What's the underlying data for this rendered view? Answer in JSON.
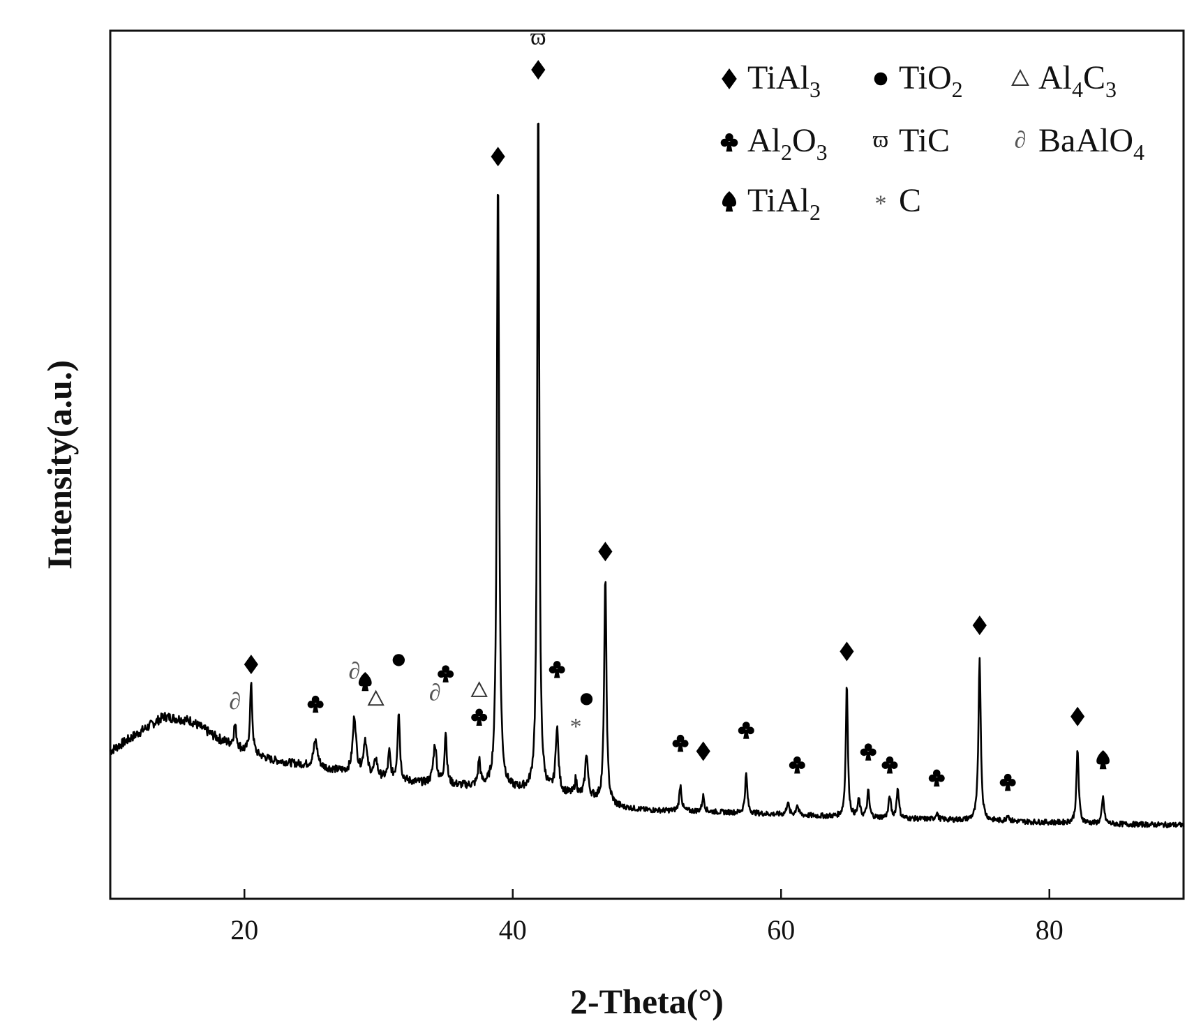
{
  "chart_data": {
    "type": "line",
    "xlabel": "2-Theta(°)",
    "ylabel": "Intensity(a.u.)",
    "xlim": [
      10,
      90
    ],
    "ylim": [
      0,
      100
    ],
    "x_ticks": [
      20,
      40,
      60,
      80
    ],
    "y_ticks_shown": false,
    "legend_position": "top-right",
    "line_color": "#000000",
    "legend": [
      {
        "symbol": "diamond",
        "name": "TiAl",
        "sub": "3"
      },
      {
        "symbol": "circle",
        "name": "TiO",
        "sub": "2"
      },
      {
        "symbol": "triangle-open",
        "name": "Al",
        "sub": "4",
        "name2": "C",
        "sub2": "3"
      },
      {
        "symbol": "club",
        "name": "Al",
        "sub": "2",
        "name2": "O",
        "sub2": "3"
      },
      {
        "symbol": "varpi",
        "name": "TiC"
      },
      {
        "symbol": "partial",
        "name": "BaAlO",
        "sub": "4"
      },
      {
        "symbol": "spade",
        "name": "TiAl",
        "sub": "2"
      },
      {
        "symbol": "asterisk",
        "name": "C"
      }
    ],
    "baseline": [
      [
        10,
        17
      ],
      [
        12,
        19
      ],
      [
        14,
        21
      ],
      [
        16,
        20.5
      ],
      [
        18,
        18.5
      ],
      [
        20,
        17
      ],
      [
        22,
        16
      ],
      [
        24,
        15.5
      ],
      [
        26,
        15
      ],
      [
        28,
        14.5
      ],
      [
        30,
        14
      ],
      [
        32,
        13.5
      ],
      [
        34,
        13.2
      ],
      [
        36,
        13
      ],
      [
        38,
        12.8
      ],
      [
        40,
        12.5
      ],
      [
        42,
        12.3
      ],
      [
        44,
        12
      ],
      [
        46,
        11.5
      ],
      [
        48,
        10.5
      ],
      [
        50,
        10.2
      ],
      [
        55,
        10
      ],
      [
        60,
        9.7
      ],
      [
        65,
        9.4
      ],
      [
        70,
        9.2
      ],
      [
        75,
        9
      ],
      [
        80,
        8.8
      ],
      [
        85,
        8.6
      ],
      [
        90,
        8.5
      ]
    ],
    "peaks": [
      {
        "x": 19.3,
        "h": 2.5,
        "w": 0.12
      },
      {
        "x": 20.5,
        "h": 8,
        "w": 0.1
      },
      {
        "x": 25.3,
        "h": 3,
        "w": 0.18
      },
      {
        "x": 28.2,
        "h": 6.5,
        "w": 0.15
      },
      {
        "x": 29.0,
        "h": 4,
        "w": 0.15
      },
      {
        "x": 29.8,
        "h": 2,
        "w": 0.12
      },
      {
        "x": 30.8,
        "h": 3,
        "w": 0.1
      },
      {
        "x": 31.5,
        "h": 8,
        "w": 0.1
      },
      {
        "x": 34.2,
        "h": 4.5,
        "w": 0.15
      },
      {
        "x": 35.0,
        "h": 6,
        "w": 0.1
      },
      {
        "x": 37.5,
        "h": 3,
        "w": 0.1
      },
      {
        "x": 38.9,
        "h": 71,
        "w": 0.1
      },
      {
        "x": 41.9,
        "h": 81,
        "w": 0.09
      },
      {
        "x": 43.3,
        "h": 7.5,
        "w": 0.12
      },
      {
        "x": 44.7,
        "h": 1.8,
        "w": 0.1
      },
      {
        "x": 45.5,
        "h": 5,
        "w": 0.12
      },
      {
        "x": 46.9,
        "h": 26,
        "w": 0.1
      },
      {
        "x": 52.5,
        "h": 3,
        "w": 0.1
      },
      {
        "x": 54.2,
        "h": 1.8,
        "w": 0.1
      },
      {
        "x": 57.4,
        "h": 4.5,
        "w": 0.1
      },
      {
        "x": 60.5,
        "h": 1.5,
        "w": 0.1
      },
      {
        "x": 61.2,
        "h": 1.2,
        "w": 0.1
      },
      {
        "x": 64.9,
        "h": 15.5,
        "w": 0.09
      },
      {
        "x": 65.8,
        "h": 2,
        "w": 0.1
      },
      {
        "x": 66.5,
        "h": 3,
        "w": 0.1
      },
      {
        "x": 68.1,
        "h": 2.5,
        "w": 0.1
      },
      {
        "x": 68.7,
        "h": 3.5,
        "w": 0.1
      },
      {
        "x": 71.6,
        "h": 0.8,
        "w": 0.1
      },
      {
        "x": 74.8,
        "h": 19,
        "w": 0.1
      },
      {
        "x": 76.9,
        "h": 0.8,
        "w": 0.1
      },
      {
        "x": 82.1,
        "h": 8.5,
        "w": 0.1
      },
      {
        "x": 84.0,
        "h": 3,
        "w": 0.1
      }
    ],
    "annotations": [
      {
        "x": 19.3,
        "symbol": "partial",
        "y": 22.5
      },
      {
        "x": 20.5,
        "symbol": "diamond",
        "y": 27
      },
      {
        "x": 25.3,
        "symbol": "club",
        "y": 22.5
      },
      {
        "x": 28.2,
        "symbol": "partial",
        "y": 26
      },
      {
        "x": 29.0,
        "symbol": "spade",
        "y": 25
      },
      {
        "x": 29.8,
        "symbol": "triangle-open",
        "y": 23
      },
      {
        "x": 31.5,
        "symbol": "circle",
        "y": 27.5
      },
      {
        "x": 34.2,
        "symbol": "partial",
        "y": 23.5
      },
      {
        "x": 35.0,
        "symbol": "club",
        "y": 26
      },
      {
        "x": 37.5,
        "symbol": "triangle-open",
        "y": 24
      },
      {
        "x": 37.5,
        "symbol": "club",
        "y": 21
      },
      {
        "x": 38.9,
        "symbol": "diamond",
        "y": 85.5
      },
      {
        "x": 41.9,
        "symbol": "diamond",
        "y": 95.5
      },
      {
        "x": 41.9,
        "symbol": "varpi",
        "y": 99
      },
      {
        "x": 43.3,
        "symbol": "club",
        "y": 26.5
      },
      {
        "x": 44.7,
        "symbol": "asterisk",
        "y": 20
      },
      {
        "x": 45.5,
        "symbol": "circle",
        "y": 23
      },
      {
        "x": 46.9,
        "symbol": "diamond",
        "y": 40
      },
      {
        "x": 52.5,
        "symbol": "club",
        "y": 18
      },
      {
        "x": 54.2,
        "symbol": "diamond",
        "y": 17
      },
      {
        "x": 57.4,
        "symbol": "club",
        "y": 19.5
      },
      {
        "x": 61.2,
        "symbol": "club",
        "y": 15.5
      },
      {
        "x": 64.9,
        "symbol": "diamond",
        "y": 28.5
      },
      {
        "x": 66.5,
        "symbol": "club",
        "y": 17
      },
      {
        "x": 68.1,
        "symbol": "club",
        "y": 15.5
      },
      {
        "x": 71.6,
        "symbol": "club",
        "y": 14
      },
      {
        "x": 74.8,
        "symbol": "diamond",
        "y": 31.5
      },
      {
        "x": 76.9,
        "symbol": "club",
        "y": 13.5
      },
      {
        "x": 82.1,
        "symbol": "diamond",
        "y": 21
      },
      {
        "x": 84.0,
        "symbol": "spade",
        "y": 16
      }
    ]
  }
}
